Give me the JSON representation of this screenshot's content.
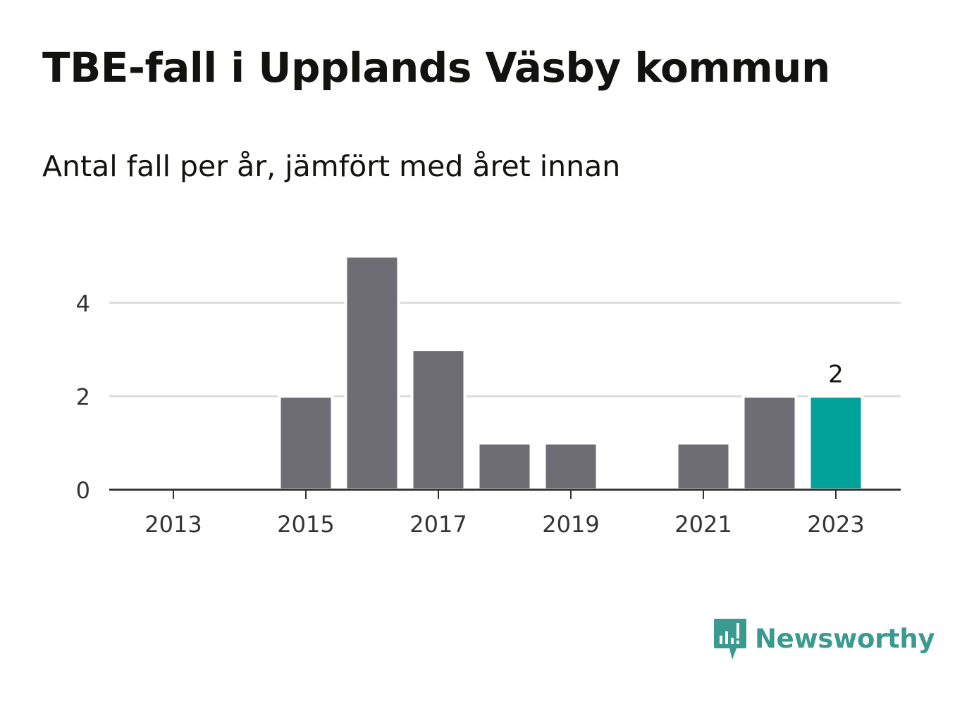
{
  "header": {
    "title": "TBE-fall i Upplands Väsby kommun",
    "subtitle": "Antal fall per år, jämfört med året innan"
  },
  "brand": {
    "name": "Newsworthy",
    "color": "#3b9a8f",
    "icon": "bar-chart-speech-bubble-icon"
  },
  "colors": {
    "bar": "#6e6d73",
    "highlight": "#00a29a",
    "grid": "#dcdcdc",
    "axis": "#333333",
    "tick_text": "#333333"
  },
  "chart_data": {
    "type": "bar",
    "categories": [
      "2013",
      "2014",
      "2015",
      "2016",
      "2017",
      "2018",
      "2019",
      "2020",
      "2021",
      "2022",
      "2023"
    ],
    "values": [
      0,
      0,
      2,
      5,
      3,
      1,
      1,
      0,
      1,
      2,
      2
    ],
    "highlight_index": 10,
    "highlight_label": "2",
    "x_tick_labels": [
      "2013",
      "2015",
      "2017",
      "2019",
      "2021",
      "2023"
    ],
    "y_ticks": [
      0,
      2,
      4
    ],
    "ylim": [
      0,
      5
    ],
    "grid": true,
    "legend": "none",
    "xlabel": "",
    "ylabel": ""
  }
}
